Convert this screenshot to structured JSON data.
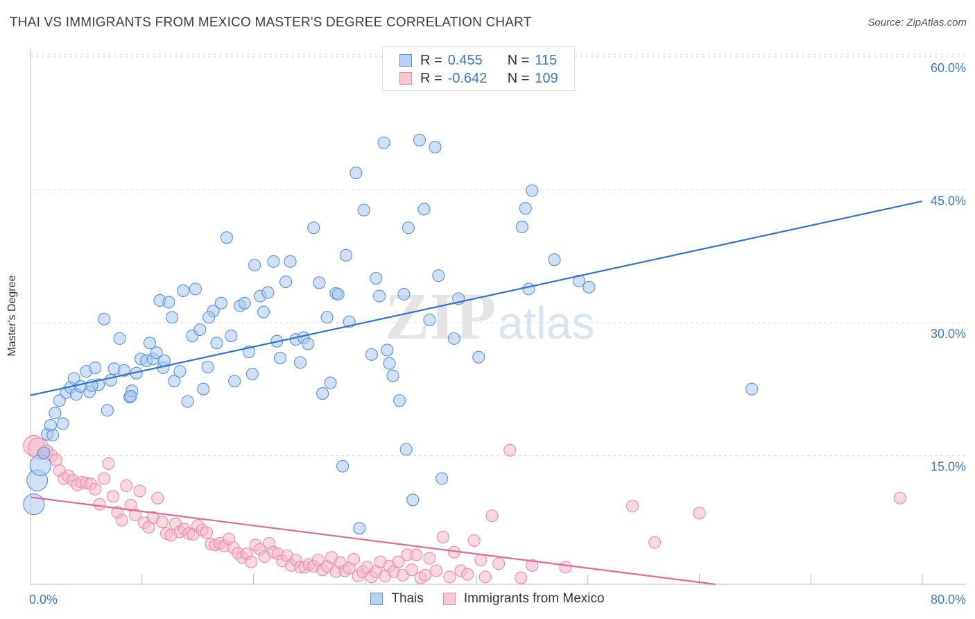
{
  "title": "THAI VS IMMIGRANTS FROM MEXICO MASTER'S DEGREE CORRELATION CHART",
  "source": "Source: ZipAtlas.com",
  "watermark": {
    "zip": "ZIP",
    "atlas": "atlas"
  },
  "legend": {
    "rows": [
      {
        "r_label": "R =",
        "r_value": "0.455",
        "n_label": "N =",
        "n_value": "115"
      },
      {
        "r_label": "R =",
        "r_value": "-0.642",
        "n_label": "N =",
        "n_value": "109"
      }
    ]
  },
  "colors": {
    "blue_fill": "#a8c8f0",
    "blue_stroke": "#5b8fd6",
    "blue_line": "#2f74d0",
    "pink_fill": "#f6b8ca",
    "pink_stroke": "#e88aa8",
    "pink_line": "#e0689a",
    "tick_label": "#3d77c9",
    "grid": "#dddddd"
  },
  "chart_data": {
    "type": "scatter",
    "title": "THAI VS IMMIGRANTS FROM MEXICO MASTER'S DEGREE CORRELATION CHART",
    "xlabel": "",
    "ylabel": "Master's Degree",
    "xlim": [
      0,
      80
    ],
    "ylim": [
      0,
      63
    ],
    "x_tick_labels": [
      {
        "value": 0,
        "label": "0.0%"
      },
      {
        "value": 80,
        "label": "80.0%"
      }
    ],
    "y_tick_labels": [
      {
        "value": 15,
        "label": "15.0%"
      },
      {
        "value": 30,
        "label": "30.0%"
      },
      {
        "value": 45,
        "label": "45.0%"
      },
      {
        "value": 60,
        "label": "60.0%"
      }
    ],
    "series": [
      {
        "name": "Thais",
        "color": "blue",
        "trend": {
          "x0": 0,
          "y0": 21.8,
          "x1": 80,
          "y1": 43.7
        },
        "points": [
          [
            0.3,
            9.5
          ],
          [
            0.6,
            12.2
          ],
          [
            0.9,
            13.9
          ],
          [
            1.2,
            15.3
          ],
          [
            1.5,
            17.4
          ],
          [
            1.8,
            18.4
          ],
          [
            2.2,
            19.8
          ],
          [
            2.6,
            21.2
          ],
          [
            2.9,
            18.6
          ],
          [
            3.2,
            22.1
          ],
          [
            3.6,
            22.7
          ],
          [
            3.9,
            23.7
          ],
          [
            4.1,
            21.9
          ],
          [
            4.5,
            22.8
          ],
          [
            5.0,
            24.5
          ],
          [
            5.3,
            22.2
          ],
          [
            5.8,
            24.9
          ],
          [
            6.1,
            23.0
          ],
          [
            6.6,
            30.4
          ],
          [
            6.9,
            20.1
          ],
          [
            7.2,
            23.5
          ],
          [
            7.5,
            24.8
          ],
          [
            8.0,
            28.2
          ],
          [
            8.4,
            24.6
          ],
          [
            8.9,
            21.6
          ],
          [
            9.1,
            22.3
          ],
          [
            9.5,
            24.3
          ],
          [
            9.9,
            25.9
          ],
          [
            10.4,
            25.7
          ],
          [
            10.7,
            27.7
          ],
          [
            11.0,
            25.9
          ],
          [
            11.3,
            26.6
          ],
          [
            11.6,
            32.5
          ],
          [
            11.9,
            24.9
          ],
          [
            12.4,
            32.3
          ],
          [
            12.7,
            30.6
          ],
          [
            12.9,
            23.4
          ],
          [
            13.4,
            24.5
          ],
          [
            13.7,
            33.6
          ],
          [
            14.1,
            21.1
          ],
          [
            14.5,
            28.5
          ],
          [
            14.8,
            33.8
          ],
          [
            15.2,
            29.2
          ],
          [
            15.5,
            22.5
          ],
          [
            15.9,
            25.0
          ],
          [
            16.4,
            31.3
          ],
          [
            16.7,
            27.7
          ],
          [
            17.1,
            32.2
          ],
          [
            17.6,
            39.6
          ],
          [
            18.0,
            28.5
          ],
          [
            18.3,
            23.4
          ],
          [
            18.8,
            31.9
          ],
          [
            19.2,
            32.2
          ],
          [
            19.6,
            26.7
          ],
          [
            19.9,
            24.2
          ],
          [
            20.1,
            36.5
          ],
          [
            20.6,
            33.0
          ],
          [
            20.9,
            31.2
          ],
          [
            21.3,
            33.4
          ],
          [
            21.8,
            36.9
          ],
          [
            22.1,
            27.9
          ],
          [
            22.4,
            26.0
          ],
          [
            22.9,
            34.6
          ],
          [
            23.3,
            36.9
          ],
          [
            23.8,
            28.1
          ],
          [
            24.2,
            25.5
          ],
          [
            24.5,
            28.3
          ],
          [
            24.9,
            27.6
          ],
          [
            25.4,
            40.7
          ],
          [
            25.9,
            34.5
          ],
          [
            26.2,
            22.0
          ],
          [
            26.6,
            30.6
          ],
          [
            26.9,
            23.2
          ],
          [
            27.4,
            33.3
          ],
          [
            27.6,
            33.2
          ],
          [
            28.0,
            13.8
          ],
          [
            28.3,
            37.6
          ],
          [
            28.6,
            30.1
          ],
          [
            29.2,
            46.9
          ],
          [
            29.5,
            6.8
          ],
          [
            29.9,
            42.7
          ],
          [
            30.6,
            26.4
          ],
          [
            31.0,
            35.0
          ],
          [
            31.3,
            33.0
          ],
          [
            31.7,
            50.3
          ],
          [
            32.0,
            26.9
          ],
          [
            32.2,
            25.4
          ],
          [
            32.5,
            24.0
          ],
          [
            33.1,
            21.2
          ],
          [
            33.5,
            33.2
          ],
          [
            33.7,
            15.7
          ],
          [
            33.9,
            40.7
          ],
          [
            34.3,
            10.0
          ],
          [
            34.9,
            50.6
          ],
          [
            35.3,
            42.8
          ],
          [
            35.8,
            30.3
          ],
          [
            36.3,
            49.8
          ],
          [
            36.6,
            35.3
          ],
          [
            36.9,
            12.4
          ],
          [
            38.0,
            28.2
          ],
          [
            38.4,
            32.7
          ],
          [
            40.2,
            26.1
          ],
          [
            44.1,
            40.8
          ],
          [
            44.4,
            42.9
          ],
          [
            44.7,
            33.8
          ],
          [
            45.0,
            44.9
          ],
          [
            47.0,
            37.1
          ],
          [
            49.2,
            34.7
          ],
          [
            50.1,
            34.0
          ],
          [
            64.7,
            22.5
          ],
          [
            2.0,
            17.3
          ],
          [
            5.5,
            22.9
          ],
          [
            9.0,
            21.7
          ],
          [
            12.0,
            25.7
          ],
          [
            16.0,
            30.6
          ]
        ]
      },
      {
        "name": "Immigrants from Mexico",
        "color": "pink",
        "trend": {
          "x0": 0,
          "y0": 10.3,
          "x1": 80,
          "y1": -2.5
        },
        "points": [
          [
            0.3,
            16.1
          ],
          [
            0.7,
            15.8
          ],
          [
            1.1,
            15.2
          ],
          [
            1.5,
            15.5
          ],
          [
            1.9,
            15.0
          ],
          [
            2.3,
            14.5
          ],
          [
            2.6,
            13.3
          ],
          [
            3.0,
            12.4
          ],
          [
            3.4,
            12.7
          ],
          [
            3.8,
            12.2
          ],
          [
            4.2,
            11.7
          ],
          [
            4.6,
            12.0
          ],
          [
            5.0,
            11.9
          ],
          [
            5.4,
            11.8
          ],
          [
            5.8,
            11.2
          ],
          [
            6.2,
            9.5
          ],
          [
            6.6,
            12.4
          ],
          [
            7.0,
            14.1
          ],
          [
            7.4,
            10.4
          ],
          [
            7.8,
            8.6
          ],
          [
            8.2,
            7.7
          ],
          [
            8.6,
            11.6
          ],
          [
            9.0,
            9.4
          ],
          [
            9.4,
            8.3
          ],
          [
            9.8,
            11.0
          ],
          [
            10.2,
            7.4
          ],
          [
            10.6,
            6.9
          ],
          [
            11.0,
            8.0
          ],
          [
            11.4,
            10.2
          ],
          [
            11.8,
            7.5
          ],
          [
            12.2,
            6.2
          ],
          [
            12.6,
            6.0
          ],
          [
            13.0,
            7.3
          ],
          [
            13.4,
            6.4
          ],
          [
            13.8,
            6.7
          ],
          [
            14.2,
            6.2
          ],
          [
            14.6,
            6.1
          ],
          [
            15.0,
            7.1
          ],
          [
            15.4,
            6.6
          ],
          [
            15.8,
            6.3
          ],
          [
            16.2,
            5.0
          ],
          [
            16.6,
            4.9
          ],
          [
            17.0,
            5.1
          ],
          [
            17.4,
            4.8
          ],
          [
            17.8,
            5.6
          ],
          [
            18.2,
            4.6
          ],
          [
            18.6,
            4.0
          ],
          [
            19.0,
            3.5
          ],
          [
            19.4,
            3.9
          ],
          [
            19.8,
            3.0
          ],
          [
            20.2,
            4.9
          ],
          [
            20.6,
            4.4
          ],
          [
            21.0,
            3.6
          ],
          [
            21.4,
            5.1
          ],
          [
            21.8,
            4.1
          ],
          [
            22.2,
            3.9
          ],
          [
            22.6,
            3.1
          ],
          [
            23.0,
            3.7
          ],
          [
            23.4,
            2.6
          ],
          [
            23.8,
            3.2
          ],
          [
            24.2,
            2.4
          ],
          [
            24.6,
            2.4
          ],
          [
            25.0,
            2.7
          ],
          [
            25.4,
            2.5
          ],
          [
            25.8,
            3.2
          ],
          [
            26.2,
            2.1
          ],
          [
            26.6,
            2.5
          ],
          [
            27.0,
            3.5
          ],
          [
            27.4,
            1.9
          ],
          [
            27.8,
            2.9
          ],
          [
            28.2,
            2.0
          ],
          [
            28.6,
            2.3
          ],
          [
            29.0,
            3.3
          ],
          [
            29.4,
            1.4
          ],
          [
            29.8,
            1.9
          ],
          [
            30.2,
            2.4
          ],
          [
            30.6,
            1.3
          ],
          [
            31.0,
            1.9
          ],
          [
            31.4,
            3.0
          ],
          [
            31.8,
            1.4
          ],
          [
            32.2,
            2.5
          ],
          [
            32.6,
            1.9
          ],
          [
            33.0,
            3.0
          ],
          [
            33.4,
            1.5
          ],
          [
            33.8,
            3.8
          ],
          [
            34.2,
            2.1
          ],
          [
            34.6,
            3.8
          ],
          [
            35.0,
            1.2
          ],
          [
            35.4,
            1.5
          ],
          [
            35.8,
            3.4
          ],
          [
            36.4,
            2.0
          ],
          [
            37.0,
            5.8
          ],
          [
            37.6,
            1.3
          ],
          [
            38.0,
            4.1
          ],
          [
            38.6,
            2.0
          ],
          [
            39.2,
            1.6
          ],
          [
            39.8,
            5.4
          ],
          [
            40.4,
            3.2
          ],
          [
            40.8,
            1.3
          ],
          [
            41.4,
            8.2
          ],
          [
            42.0,
            2.8
          ],
          [
            43.0,
            15.6
          ],
          [
            44.0,
            1.2
          ],
          [
            45.0,
            2.6
          ],
          [
            48.0,
            2.4
          ],
          [
            54.0,
            9.3
          ],
          [
            56.0,
            5.2
          ],
          [
            60.0,
            8.5
          ],
          [
            78.0,
            10.2
          ]
        ]
      }
    ]
  },
  "bottom_legend": [
    {
      "label": "Thais"
    },
    {
      "label": "Immigrants from Mexico"
    }
  ]
}
